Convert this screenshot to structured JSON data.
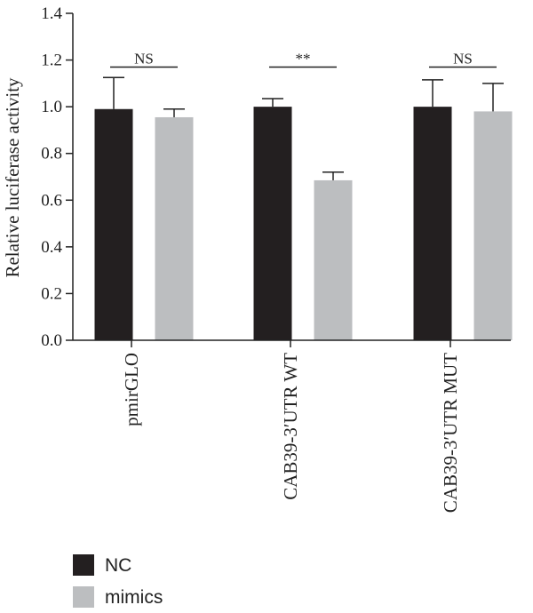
{
  "chart_data": {
    "type": "bar",
    "title": "",
    "xlabel": "",
    "ylabel": "Relative luciferase activity",
    "ylim": [
      0,
      1.4
    ],
    "yticks": [
      "0.0",
      "0.2",
      "0.4",
      "0.6",
      "0.8",
      "1.0",
      "1.2",
      "1.4"
    ],
    "grid": false,
    "legend_position": "bottom-left",
    "categories": [
      "pmirGLO",
      "CAB39-3′UTR WT",
      "CAB39-3′UTR MUT"
    ],
    "series": [
      {
        "name": "NC",
        "color": "#231f20",
        "values": [
          0.99,
          1.0,
          1.0
        ],
        "errors": [
          0.135,
          0.035,
          0.115
        ]
      },
      {
        "name": "mimics",
        "color": "#bcbec0",
        "values": [
          0.955,
          0.685,
          0.98
        ],
        "errors": [
          0.035,
          0.035,
          0.12
        ]
      }
    ],
    "annotations": [
      {
        "category": "pmirGLO",
        "text": "NS",
        "y": 1.17
      },
      {
        "category": "CAB39-3′UTR WT",
        "text": "**",
        "y": 1.17
      },
      {
        "category": "CAB39-3′UTR MUT",
        "text": "NS",
        "y": 1.17
      }
    ]
  }
}
